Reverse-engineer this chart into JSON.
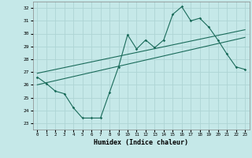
{
  "xlabel": "Humidex (Indice chaleur)",
  "ylabel": "",
  "bg_color": "#c5e8e8",
  "grid_color": "#aed4d4",
  "line_color": "#1a6b5a",
  "xlim": [
    -0.5,
    23.5
  ],
  "ylim": [
    22.5,
    32.5
  ],
  "xticks": [
    0,
    1,
    2,
    3,
    4,
    5,
    6,
    7,
    8,
    9,
    10,
    11,
    12,
    13,
    14,
    15,
    16,
    17,
    18,
    19,
    20,
    21,
    22,
    23
  ],
  "yticks": [
    23,
    24,
    25,
    26,
    27,
    28,
    29,
    30,
    31,
    32
  ],
  "line1_x": [
    0,
    1,
    2,
    3,
    4,
    5,
    6,
    7,
    8,
    9,
    10,
    11,
    12,
    13,
    14,
    15,
    16,
    17,
    18,
    19,
    20,
    21,
    22,
    23
  ],
  "line1_y": [
    26.6,
    26.1,
    25.5,
    25.3,
    24.2,
    23.4,
    23.4,
    23.4,
    25.4,
    27.4,
    29.9,
    28.8,
    29.5,
    28.9,
    29.5,
    31.5,
    32.1,
    31.0,
    31.2,
    30.5,
    29.5,
    28.4,
    27.4,
    27.2
  ],
  "line2_x": [
    0,
    23
  ],
  "line2_y": [
    26.0,
    29.7
  ],
  "line3_x": [
    0,
    23
  ],
  "line3_y": [
    26.9,
    30.3
  ]
}
